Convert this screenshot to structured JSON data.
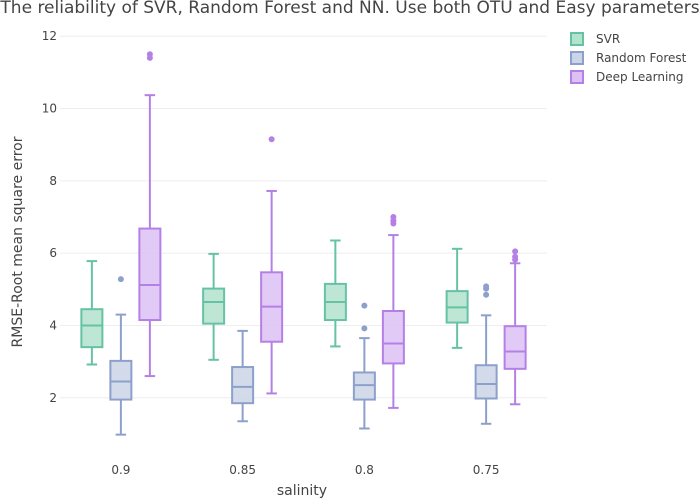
{
  "chart_data": {
    "type": "box",
    "title": "The reliability of SVR, Random Forest and NN. Use both OTU and Easy parameters",
    "xlabel": "salinity",
    "ylabel": "RMSE-Root mean square error",
    "categories": [
      "0.9",
      "0.85",
      "0.8",
      "0.75"
    ],
    "ylim": [
      0.5,
      12.2
    ],
    "yticks": [
      2,
      4,
      6,
      8,
      10,
      12
    ],
    "grid": true,
    "legend": "top-right",
    "series": [
      {
        "name": "SVR",
        "color": "#66c2a5",
        "fill": "#b3e2cd",
        "boxes": [
          {
            "min": 2.92,
            "q1": 3.4,
            "median": 4.0,
            "q3": 4.45,
            "max": 5.78,
            "outliers": []
          },
          {
            "min": 3.05,
            "q1": 4.05,
            "median": 4.65,
            "q3": 5.02,
            "max": 5.98,
            "outliers": []
          },
          {
            "min": 3.42,
            "q1": 4.15,
            "median": 4.65,
            "q3": 5.15,
            "max": 6.35,
            "outliers": []
          },
          {
            "min": 3.38,
            "q1": 4.08,
            "median": 4.5,
            "q3": 4.95,
            "max": 6.12,
            "outliers": []
          }
        ]
      },
      {
        "name": "Random Forest",
        "color": "#8da0cb",
        "fill": "#cbd5e8",
        "boxes": [
          {
            "min": 0.98,
            "q1": 1.95,
            "median": 2.45,
            "q3": 3.02,
            "max": 4.3,
            "outliers": [
              5.28
            ]
          },
          {
            "min": 1.35,
            "q1": 1.85,
            "median": 2.3,
            "q3": 2.85,
            "max": 3.85,
            "outliers": []
          },
          {
            "min": 1.15,
            "q1": 1.95,
            "median": 2.35,
            "q3": 2.7,
            "max": 3.65,
            "outliers": [
              3.92,
              4.55
            ]
          },
          {
            "min": 1.28,
            "q1": 1.98,
            "median": 2.38,
            "q3": 2.9,
            "max": 4.28,
            "outliers": [
              4.85,
              5.02,
              5.08
            ]
          }
        ]
      },
      {
        "name": "Deep Learning",
        "color": "#b580e6",
        "fill": "#dcc1f4",
        "boxes": [
          {
            "min": 2.6,
            "q1": 4.15,
            "median": 5.12,
            "q3": 6.68,
            "max": 10.37,
            "outliers": [
              11.4,
              11.5
            ]
          },
          {
            "min": 2.12,
            "q1": 3.55,
            "median": 4.52,
            "q3": 5.47,
            "max": 7.72,
            "outliers": [
              9.15
            ]
          },
          {
            "min": 1.72,
            "q1": 2.95,
            "median": 3.5,
            "q3": 4.4,
            "max": 6.5,
            "outliers": [
              6.82,
              6.9,
              7.0
            ]
          },
          {
            "min": 1.82,
            "q1": 2.8,
            "median": 3.28,
            "q3": 3.98,
            "max": 5.72,
            "outliers": [
              5.82,
              5.9,
              6.05
            ]
          }
        ]
      }
    ]
  }
}
